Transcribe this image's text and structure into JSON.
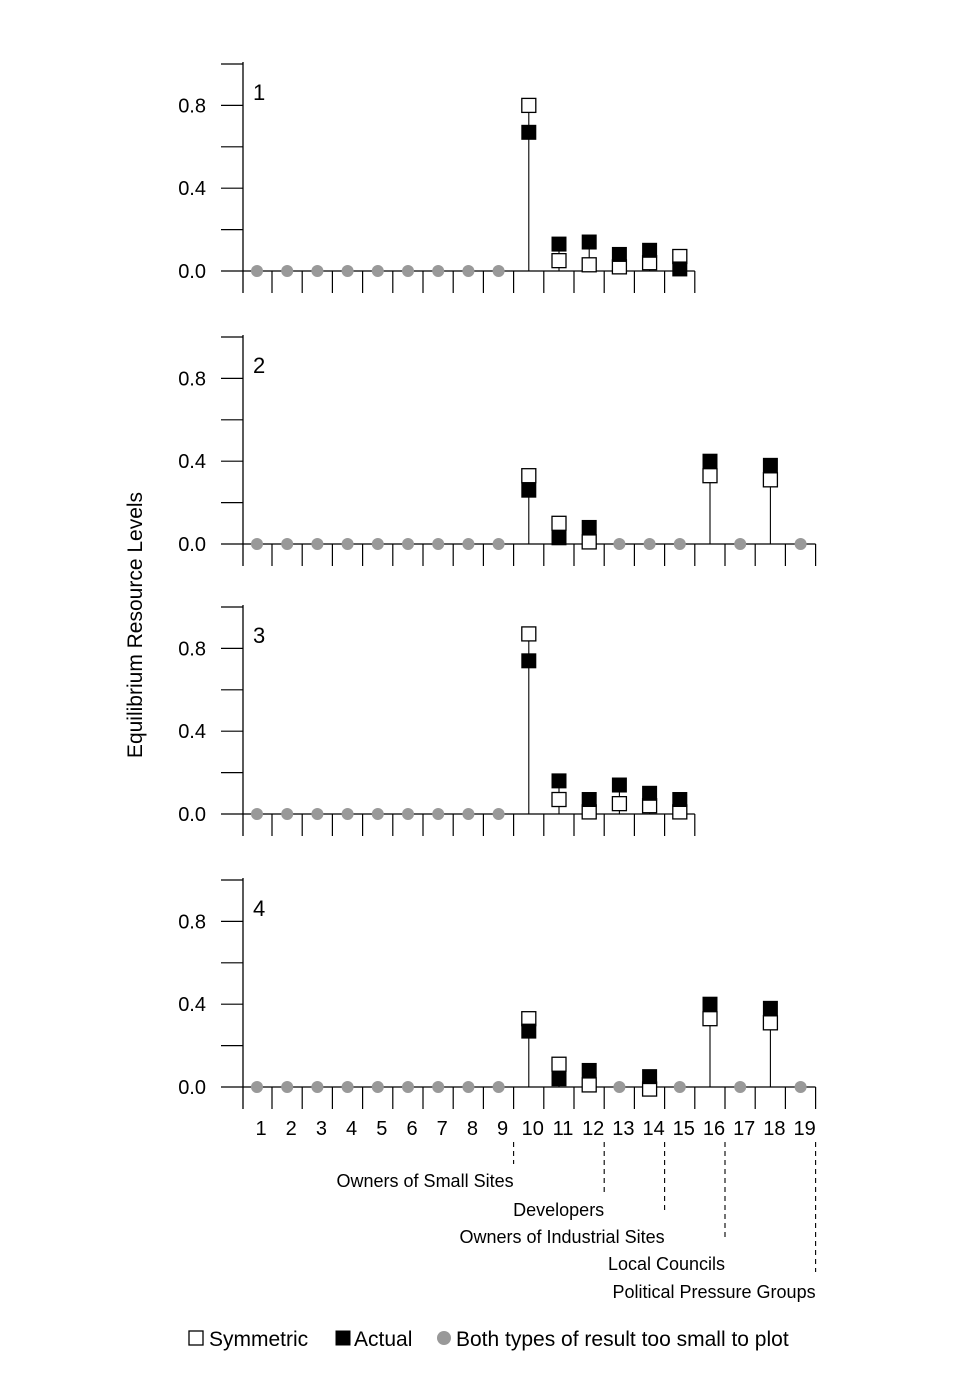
{
  "chart_data": {
    "type": "scatter",
    "ylabel": "Equilibrium Resource Levels",
    "yticks": [
      "0.0",
      "0.4",
      "0.8"
    ],
    "ylim": [
      0,
      1.0
    ],
    "x_categories": [
      "1",
      "2",
      "3",
      "4",
      "5",
      "6",
      "7",
      "8",
      "9",
      "10",
      "11",
      "12",
      "13",
      "14",
      "15",
      "16",
      "17",
      "18",
      "19"
    ],
    "panels": [
      {
        "label": "1",
        "symmetric": [
          {
            "x": 10,
            "y": 0.8
          },
          {
            "x": 11,
            "y": 0.05
          },
          {
            "x": 12,
            "y": 0.03
          },
          {
            "x": 13,
            "y": 0.02
          },
          {
            "x": 14,
            "y": 0.04
          },
          {
            "x": 15,
            "y": 0.07
          }
        ],
        "actual": [
          {
            "x": 10,
            "y": 0.67
          },
          {
            "x": 11,
            "y": 0.13
          },
          {
            "x": 12,
            "y": 0.14
          },
          {
            "x": 13,
            "y": 0.08
          },
          {
            "x": 14,
            "y": 0.1
          },
          {
            "x": 15,
            "y": 0.01
          }
        ],
        "both_small": [
          1,
          2,
          3,
          4,
          5,
          6,
          7,
          8,
          9
        ]
      },
      {
        "label": "2",
        "symmetric": [
          {
            "x": 10,
            "y": 0.33
          },
          {
            "x": 11,
            "y": 0.1
          },
          {
            "x": 12,
            "y": 0.01
          },
          {
            "x": 16,
            "y": 0.33
          },
          {
            "x": 18,
            "y": 0.31
          }
        ],
        "actual": [
          {
            "x": 10,
            "y": 0.26
          },
          {
            "x": 11,
            "y": 0.03
          },
          {
            "x": 12,
            "y": 0.08
          },
          {
            "x": 16,
            "y": 0.4
          },
          {
            "x": 18,
            "y": 0.38
          }
        ],
        "both_small": [
          1,
          2,
          3,
          4,
          5,
          6,
          7,
          8,
          9,
          13,
          14,
          15,
          17,
          19
        ]
      },
      {
        "label": "3",
        "symmetric": [
          {
            "x": 10,
            "y": 0.87
          },
          {
            "x": 11,
            "y": 0.07
          },
          {
            "x": 12,
            "y": 0.01
          },
          {
            "x": 13,
            "y": 0.05
          },
          {
            "x": 14,
            "y": 0.04
          },
          {
            "x": 15,
            "y": 0.01
          }
        ],
        "actual": [
          {
            "x": 10,
            "y": 0.74
          },
          {
            "x": 11,
            "y": 0.16
          },
          {
            "x": 12,
            "y": 0.07
          },
          {
            "x": 13,
            "y": 0.14
          },
          {
            "x": 14,
            "y": 0.1
          },
          {
            "x": 15,
            "y": 0.07
          }
        ],
        "both_small": [
          1,
          2,
          3,
          4,
          5,
          6,
          7,
          8,
          9
        ]
      },
      {
        "label": "4",
        "symmetric": [
          {
            "x": 10,
            "y": 0.33
          },
          {
            "x": 11,
            "y": 0.11
          },
          {
            "x": 12,
            "y": 0.01
          },
          {
            "x": 14,
            "y": -0.01
          },
          {
            "x": 16,
            "y": 0.33
          },
          {
            "x": 18,
            "y": 0.31
          }
        ],
        "actual": [
          {
            "x": 10,
            "y": 0.27
          },
          {
            "x": 11,
            "y": 0.04
          },
          {
            "x": 12,
            "y": 0.08
          },
          {
            "x": 14,
            "y": 0.05
          },
          {
            "x": 16,
            "y": 0.4
          },
          {
            "x": 18,
            "y": 0.38
          }
        ],
        "both_small": [
          1,
          2,
          3,
          4,
          5,
          6,
          7,
          8,
          9,
          13,
          15,
          17,
          19
        ]
      }
    ],
    "groups": [
      {
        "label": "Owners of Small Sites",
        "end_after": 9
      },
      {
        "label": "Developers",
        "end_after": 12
      },
      {
        "label": "Owners of Industrial Sites",
        "end_after": 14
      },
      {
        "label": "Local Councils",
        "end_after": 16
      },
      {
        "label": "Political Pressure Groups",
        "end_after": 19
      }
    ],
    "legend": [
      {
        "key": "symmetric",
        "label": "Symmetric"
      },
      {
        "key": "actual",
        "label": "Actual"
      },
      {
        "key": "both_small",
        "label": "Both types of result too small to plot"
      }
    ],
    "colors": {
      "actual": "#000000",
      "symmetric": "#ffffff",
      "both_small": "#999999",
      "axis": "#000000"
    }
  }
}
